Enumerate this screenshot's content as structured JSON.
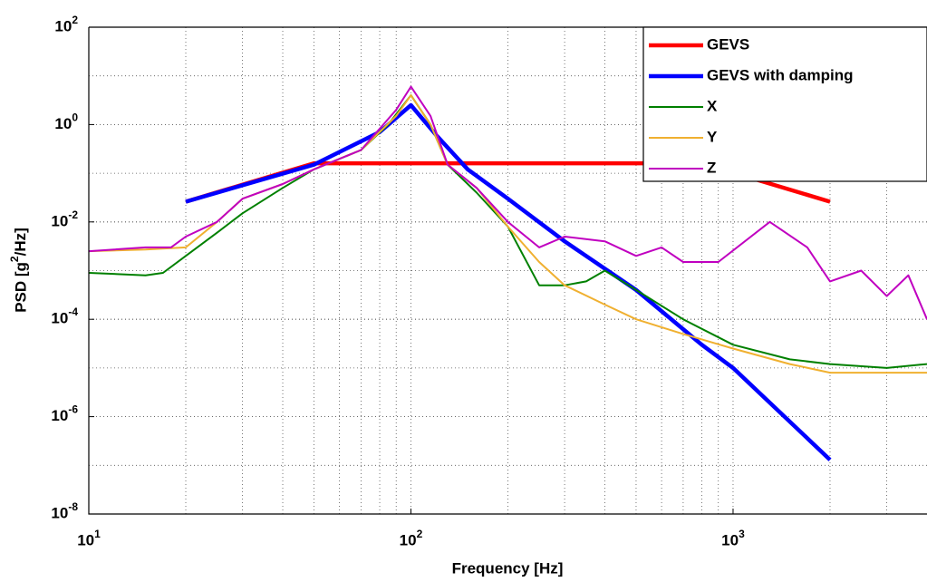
{
  "chart_data": {
    "type": "line",
    "x_label": "Frequency [Hz]",
    "y_label": "PSD [g^2/Hz]",
    "xscale": "log",
    "yscale": "log",
    "xlim": [
      10,
      4000
    ],
    "ylim": [
      1e-08,
      100
    ],
    "xticks": [
      {
        "value": 10,
        "label": "10^1"
      },
      {
        "value": 100,
        "label": "10^2"
      },
      {
        "value": 1000,
        "label": "10^3"
      }
    ],
    "yticks": [
      {
        "value": 1e-08,
        "label": "10^-8"
      },
      {
        "value": 1e-06,
        "label": "10^-6"
      },
      {
        "value": 0.0001,
        "label": "10^-4"
      },
      {
        "value": 0.01,
        "label": "10^-2"
      },
      {
        "value": 1,
        "label": "10^0"
      },
      {
        "value": 100,
        "label": "10^2"
      }
    ],
    "grid": true,
    "minor_grid": true,
    "legend": "upper right",
    "series": [
      {
        "name": "GEVS",
        "color": "#ff0000",
        "x": [
          20,
          50,
          800,
          2000
        ],
        "values": [
          0.026,
          0.16,
          0.16,
          0.026
        ]
      },
      {
        "name": "GEVS with damping",
        "color": "#0000ff",
        "x": [
          20,
          50,
          80,
          100,
          120,
          150,
          200,
          300,
          500,
          800,
          1000,
          2000
        ],
        "values": [
          0.026,
          0.15,
          0.7,
          2.5,
          0.6,
          0.12,
          0.03,
          0.004,
          0.0004,
          3e-05,
          1e-05,
          1.3e-07
        ]
      },
      {
        "name": "X",
        "color": "#008000",
        "x": [
          10,
          15,
          17,
          20,
          25,
          30,
          40,
          50,
          70,
          85,
          100,
          115,
          130,
          160,
          200,
          250,
          300,
          350,
          400,
          500,
          700,
          1000,
          1500,
          2000,
          3000,
          4000
        ],
        "values": [
          0.0009,
          0.0008,
          0.0009,
          0.002,
          0.006,
          0.015,
          0.05,
          0.12,
          0.3,
          1,
          4,
          1,
          0.15,
          0.04,
          0.008,
          0.0005,
          0.0005,
          0.0006,
          0.001,
          0.0004,
          0.0001,
          3e-05,
          1.5e-05,
          1.2e-05,
          1e-05,
          1.2e-05
        ]
      },
      {
        "name": "Y",
        "color": "#f0b030",
        "x": [
          10,
          15,
          20,
          25,
          30,
          40,
          50,
          70,
          90,
          100,
          115,
          130,
          160,
          200,
          250,
          300,
          400,
          500,
          700,
          1000,
          1500,
          2000,
          3000,
          4000
        ],
        "values": [
          0.0025,
          0.0027,
          0.003,
          0.01,
          0.03,
          0.06,
          0.12,
          0.3,
          1.5,
          4,
          1,
          0.15,
          0.05,
          0.008,
          0.0015,
          0.0005,
          0.0002,
          0.0001,
          5e-05,
          2.5e-05,
          1.2e-05,
          8e-06,
          8e-06,
          8e-06
        ]
      },
      {
        "name": "Z",
        "color": "#c000c0",
        "x": [
          10,
          15,
          18,
          20,
          25,
          30,
          40,
          50,
          70,
          90,
          100,
          115,
          130,
          160,
          200,
          250,
          300,
          400,
          500,
          600,
          700,
          900,
          1300,
          1700,
          2000,
          2500,
          3000,
          3500,
          4000
        ],
        "values": [
          0.0025,
          0.003,
          0.003,
          0.005,
          0.01,
          0.03,
          0.06,
          0.12,
          0.3,
          2,
          6,
          1.5,
          0.15,
          0.05,
          0.01,
          0.003,
          0.005,
          0.004,
          0.002,
          0.003,
          0.0015,
          0.0015,
          0.01,
          0.003,
          0.0006,
          0.001,
          0.0003,
          0.0008,
          0.0001
        ]
      }
    ]
  }
}
